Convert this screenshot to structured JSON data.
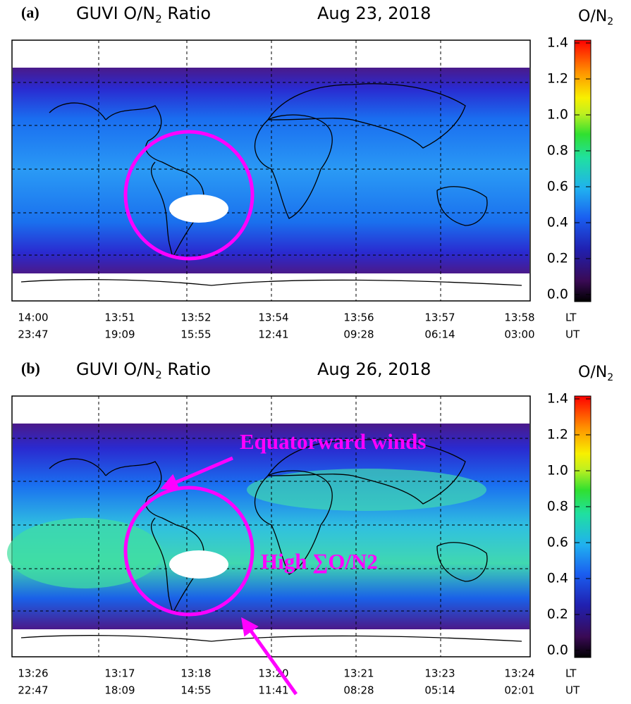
{
  "panels": [
    {
      "label": "(a)",
      "title": "GUVI O/N",
      "title_sub": "2",
      "title_rest": " Ratio",
      "date": "Aug 23,  2018",
      "colorbar": {
        "label": "O/N",
        "label_sub": "2",
        "ticks": [
          "0.0",
          "0.2",
          "0.4",
          "0.6",
          "0.8",
          "1.0",
          "1.2",
          "1.4"
        ]
      },
      "lt_label": "LT",
      "ut_label": "UT",
      "lt": [
        "14:00",
        "13:51",
        "13:52",
        "13:54",
        "13:56",
        "13:57",
        "13:58"
      ],
      "ut": [
        "23:47",
        "19:09",
        "15:55",
        "12:41",
        "09:28",
        "06:14",
        "03:00"
      ]
    },
    {
      "label": "(b)",
      "title": "GUVI O/N",
      "title_sub": "2",
      "title_rest": " Ratio",
      "date": "Aug 26,  2018",
      "colorbar": {
        "label": "O/N",
        "label_sub": "2",
        "ticks": [
          "0.0",
          "0.2",
          "0.4",
          "0.6",
          "0.8",
          "1.0",
          "1.2",
          "1.4"
        ]
      },
      "lt_label": "LT",
      "ut_label": "UT",
      "lt": [
        "13:26",
        "13:17",
        "13:18",
        "13:20",
        "13:21",
        "13:23",
        "13:24"
      ],
      "ut": [
        "22:47",
        "18:09",
        "14:55",
        "11:41",
        "08:28",
        "05:14",
        "02:01"
      ]
    }
  ],
  "annotations": {
    "winds": "Equatorward winds",
    "high": "High ∑O/N2"
  }
}
